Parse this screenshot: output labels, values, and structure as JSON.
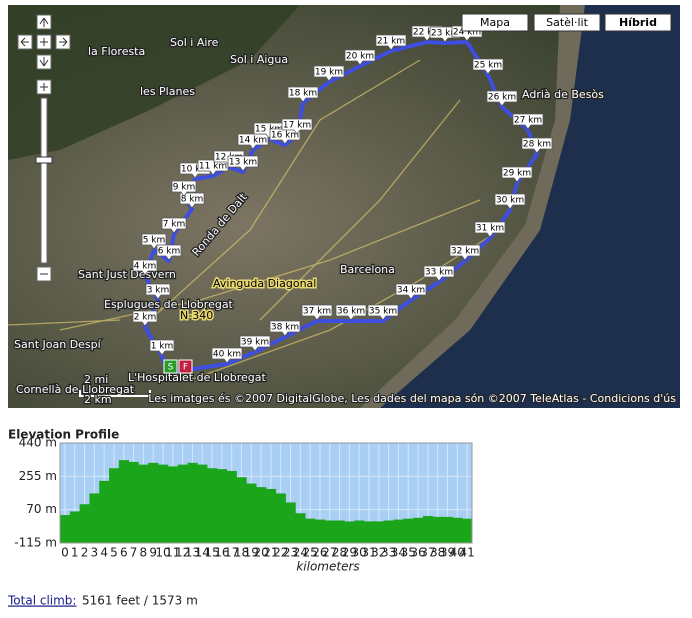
{
  "map": {
    "view_buttons": [
      "Mapa",
      "Satèl·lit",
      "Híbrid"
    ],
    "place_labels": [
      "la Floresta",
      "Sol i Aire",
      "Sol i Aigua",
      "les Planes",
      "Sant Just Desvern",
      "Esplugues de Llobregat",
      "Barcelona",
      "Avinguda Diagonal",
      "Ronda de Dalt",
      "N-340",
      "Sant Joan Despí",
      "Cornellà de Llobregat",
      "L'Hospitalet de Llobregat",
      "Adrià de Besòs"
    ],
    "km_markers": [
      "1 km",
      "2 km",
      "3 km",
      "4 km",
      "5 km",
      "6 km",
      "7 km",
      "8 km",
      "9 km",
      "10 km",
      "11 km",
      "12 km",
      "13 km",
      "14 km",
      "15 km",
      "16 km",
      "17 km",
      "18 km",
      "19 km",
      "20 km",
      "21 km",
      "22 km",
      "23 km",
      "24 km",
      "25 km",
      "26 km",
      "27 km",
      "28 km",
      "29 km",
      "30 km",
      "31 km",
      "32 km",
      "33 km",
      "34 km",
      "35 km",
      "36 km",
      "37 km",
      "38 km",
      "39 km",
      "40 km"
    ],
    "start_label": "S",
    "finish_label": "F",
    "scale": [
      "2 mi",
      "2 km"
    ],
    "copyright": "Les imatges és ©2007 DigitalGlobe, Les dades del mapa són ©2007 TeleAtlas - Condicions d'ús"
  },
  "chart_data": {
    "type": "bar",
    "title": "Elevation Profile",
    "x": [
      0,
      1,
      2,
      3,
      4,
      5,
      6,
      7,
      8,
      9,
      10,
      11,
      12,
      13,
      14,
      15,
      16,
      17,
      18,
      19,
      20,
      21,
      22,
      23,
      24,
      25,
      26,
      27,
      28,
      29,
      30,
      31,
      32,
      33,
      34,
      35,
      36,
      37,
      38,
      39,
      40,
      41
    ],
    "values": [
      40,
      60,
      100,
      160,
      230,
      300,
      345,
      335,
      320,
      330,
      320,
      310,
      320,
      330,
      320,
      300,
      295,
      285,
      250,
      215,
      195,
      185,
      160,
      110,
      50,
      20,
      15,
      10,
      10,
      5,
      10,
      5,
      5,
      10,
      15,
      20,
      25,
      35,
      30,
      30,
      25,
      20
    ],
    "color": "#1aa51a",
    "xlim": [
      -0.5,
      41.5
    ],
    "ylim": [
      -115,
      440
    ],
    "yticks": [
      {
        "value": -115,
        "label": "-115 m"
      },
      {
        "value": 70,
        "label": "70 m"
      },
      {
        "value": 255,
        "label": "255 m"
      },
      {
        "value": 440,
        "label": "440 m"
      }
    ],
    "xticks": [
      0,
      1,
      2,
      3,
      4,
      5,
      6,
      7,
      8,
      9,
      10,
      11,
      12,
      13,
      14,
      15,
      16,
      17,
      18,
      19,
      20,
      21,
      22,
      23,
      24,
      25,
      26,
      27,
      28,
      29,
      30,
      31,
      32,
      33,
      34,
      35,
      36,
      37,
      38,
      39,
      40,
      41
    ],
    "xlabel": "kilometers",
    "grid": true
  },
  "footer": {
    "link": "Total climb:",
    "text": "5161 feet / 1573 m"
  }
}
